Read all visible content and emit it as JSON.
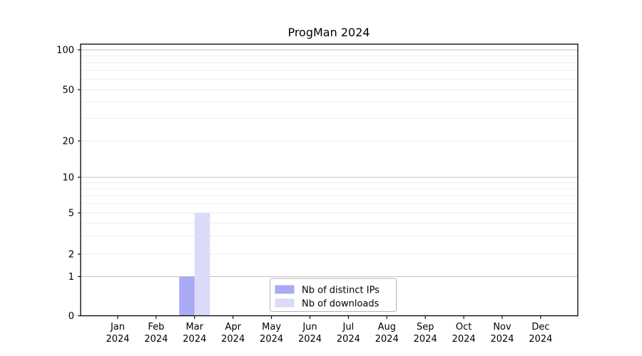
{
  "chart_data": {
    "type": "bar",
    "title": "ProgMan 2024",
    "categories": [
      "Jan 2024",
      "Feb 2024",
      "Mar 2024",
      "Apr 2024",
      "May 2024",
      "Jun 2024",
      "Jul 2024",
      "Aug 2024",
      "Sep 2024",
      "Oct 2024",
      "Nov 2024",
      "Dec 2024"
    ],
    "series": [
      {
        "name": "Nb of distinct IPs",
        "color": "#a9a9f4",
        "values": [
          0,
          0,
          1,
          0,
          0,
          0,
          0,
          0,
          0,
          0,
          0,
          0
        ]
      },
      {
        "name": "Nb of downloads",
        "color": "#dbdbf9",
        "values": [
          0,
          0,
          5,
          0,
          0,
          0,
          0,
          0,
          0,
          0,
          0,
          0
        ]
      }
    ],
    "xlabel": "",
    "ylabel": "",
    "yaxis": {
      "scale": "symlog",
      "tick_values": [
        0,
        1,
        2,
        5,
        10,
        20,
        50,
        100
      ],
      "tick_labels": [
        "0",
        "1",
        "2",
        "5",
        "10",
        "20",
        "50",
        "100"
      ],
      "major_gridlines": [
        1,
        10,
        100
      ],
      "minor_gridlines": [
        2,
        3,
        4,
        5,
        6,
        7,
        8,
        9,
        20,
        30,
        40,
        50,
        60,
        70,
        80,
        90
      ],
      "ylim": [
        0,
        111
      ]
    },
    "legend": {
      "position": "lower center",
      "entries": [
        "Nb of distinct IPs",
        "Nb of downloads"
      ]
    },
    "grid": "horizontal",
    "colors": {
      "background": "#ffffff",
      "axis": "#000000",
      "text": "#000000",
      "major_grid": "#c4c4c4",
      "minor_grid": "#ebebeb",
      "legend_border": "#b3b3b3"
    }
  }
}
